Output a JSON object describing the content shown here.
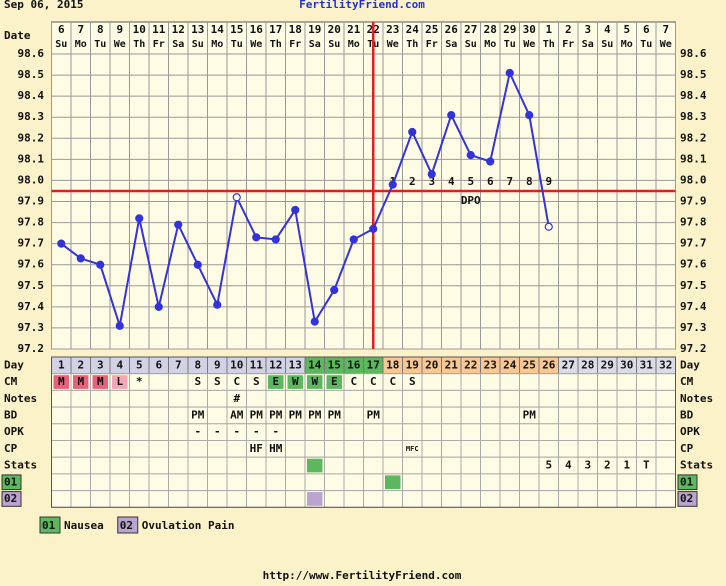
{
  "chart_data": {
    "type": "line",
    "title": "FertilityFriend.com",
    "subtitle": "Sep 06, 2015",
    "footer": "http://www.FertilityFriend.com",
    "date_label": "Date",
    "day_label": "Day",
    "dates": [
      6,
      7,
      8,
      9,
      10,
      11,
      12,
      13,
      14,
      15,
      16,
      17,
      18,
      19,
      20,
      21,
      22,
      23,
      24,
      25,
      26,
      27,
      28,
      29,
      30,
      1,
      2,
      3,
      4,
      5,
      6,
      7
    ],
    "weekdays": [
      "Su",
      "Mo",
      "Tu",
      "We",
      "Th",
      "Fr",
      "Sa",
      "Su",
      "Mo",
      "Tu",
      "We",
      "Th",
      "Fr",
      "Sa",
      "Su",
      "Mo",
      "Tu",
      "We",
      "Th",
      "Fr",
      "Sa",
      "Su",
      "Mo",
      "Tu",
      "We",
      "Th",
      "Fr",
      "Sa",
      "Su",
      "Mo",
      "Tu",
      "We"
    ],
    "categories": [
      1,
      2,
      3,
      4,
      5,
      6,
      7,
      8,
      9,
      10,
      11,
      12,
      13,
      14,
      15,
      16,
      17,
      18,
      19,
      20,
      21,
      22,
      23,
      24,
      25,
      26,
      27,
      28,
      29,
      30,
      31,
      32
    ],
    "day_colors": [
      "#d2d2e6",
      "#d2d2e6",
      "#d2d2e6",
      "#d2d2e6",
      "#d2d2e6",
      "#d2d2e6",
      "#d2d2e6",
      "#d2d2e6",
      "#d2d2e6",
      "#d2d2e6",
      "#d2d2e6",
      "#d2d2e6",
      "#d2d2e6",
      "#5cb85c",
      "#5cb85c",
      "#5cb85c",
      "#5cb85c",
      "#f7c893",
      "#f7c893",
      "#f7c893",
      "#f7c893",
      "#f7c893",
      "#f7c893",
      "#f7c893",
      "#f7c893",
      "#f7c893",
      "#dcdce6",
      "#dcdce6",
      "#dcdce6",
      "#dcdce6",
      "#dcdce6",
      "#dcdce6"
    ],
    "series": [
      {
        "color": "#3333dd",
        "hollow_days": [
          10,
          26
        ],
        "values": [
          97.7,
          97.63,
          97.6,
          97.31,
          97.82,
          97.4,
          97.79,
          97.6,
          97.41,
          97.92,
          97.73,
          97.72,
          97.86,
          97.33,
          97.48,
          97.72,
          97.77,
          97.98,
          98.23,
          98.03,
          98.31,
          98.12,
          98.09,
          98.51,
          98.31,
          97.78,
          null,
          null,
          null,
          null,
          null,
          null
        ]
      }
    ],
    "ylim": [
      97.2,
      98.6
    ],
    "yticks": [
      97.2,
      97.3,
      97.4,
      97.5,
      97.6,
      97.7,
      97.8,
      97.9,
      {
        "value": 98.0,
        "label": "98.0"
      },
      98.1,
      98.2,
      98.3,
      98.4,
      98.5,
      98.6
    ],
    "grid": true,
    "coverline": {
      "value": 97.95,
      "color": "#e02020"
    },
    "ovulation_day": 17,
    "dpo_labels": [
      1,
      2,
      3,
      4,
      5,
      6,
      7,
      8,
      9
    ],
    "dpo_text": "DPO",
    "rows": [
      {
        "label": "CM",
        "cells": [
          "M",
          "M",
          "M",
          "L",
          "*",
          null,
          null,
          "S",
          "S",
          "C",
          "S",
          "E",
          "W",
          "W",
          "E",
          "C",
          "C",
          "C",
          "S",
          null,
          null,
          null,
          null,
          null,
          null,
          null,
          null,
          null,
          null,
          null,
          null,
          null
        ],
        "colors": [
          "#e8607a",
          "#e8607a",
          "#e8607a",
          "#f4a6b6",
          null,
          null,
          null,
          null,
          null,
          null,
          null,
          "#5cb85c",
          "#5cb85c",
          "#5cb85c",
          "#5cb85c",
          null,
          null,
          null,
          null,
          null,
          null,
          null,
          null,
          null,
          null,
          null,
          null,
          null,
          null,
          null,
          null,
          null
        ]
      },
      {
        "label": "Notes",
        "cells": [
          null,
          null,
          null,
          null,
          null,
          null,
          null,
          null,
          null,
          "#",
          null,
          null,
          null,
          null,
          null,
          null,
          null,
          null,
          null,
          null,
          null,
          null,
          null,
          null,
          null,
          null,
          null,
          null,
          null,
          null,
          null,
          null
        ]
      },
      {
        "label": "BD",
        "cells": [
          null,
          null,
          null,
          null,
          null,
          null,
          null,
          "PM",
          null,
          "AM",
          "PM",
          "PM",
          "PM",
          "PM",
          "PM",
          null,
          "PM",
          null,
          null,
          null,
          null,
          null,
          null,
          null,
          "PM",
          null,
          null,
          null,
          null,
          null,
          null,
          null
        ]
      },
      {
        "label": "OPK",
        "cells": [
          null,
          null,
          null,
          null,
          null,
          null,
          null,
          "-",
          "-",
          "-",
          "-",
          "-",
          null,
          null,
          null,
          null,
          null,
          null,
          null,
          null,
          null,
          null,
          null,
          null,
          null,
          null,
          null,
          null,
          null,
          null,
          null,
          null
        ]
      },
      {
        "label": "CP",
        "cells": [
          null,
          null,
          null,
          null,
          null,
          null,
          null,
          null,
          null,
          null,
          "HF",
          "HM",
          null,
          null,
          null,
          null,
          null,
          null,
          "MFC",
          null,
          null,
          null,
          null,
          null,
          null,
          null,
          null,
          null,
          null,
          null,
          null,
          null
        ]
      },
      {
        "label": "Stats",
        "cells": [
          null,
          null,
          null,
          null,
          null,
          null,
          null,
          null,
          null,
          null,
          null,
          null,
          null,
          null,
          null,
          null,
          null,
          null,
          null,
          null,
          null,
          null,
          null,
          null,
          null,
          "5",
          "4",
          "3",
          "2",
          "1",
          "T",
          null
        ],
        "colors": [
          null,
          null,
          null,
          null,
          null,
          null,
          null,
          null,
          null,
          null,
          null,
          null,
          null,
          "#5cb85c",
          null,
          null,
          null,
          null,
          null,
          null,
          null,
          null,
          null,
          null,
          null,
          null,
          null,
          null,
          null,
          null,
          null,
          null
        ]
      },
      {
        "label": "01",
        "label_color": "#5cb85c",
        "colors": [
          null,
          null,
          null,
          null,
          null,
          null,
          null,
          null,
          null,
          null,
          null,
          null,
          null,
          null,
          null,
          null,
          null,
          "#5cb85c",
          null,
          null,
          null,
          null,
          null,
          null,
          null,
          null,
          null,
          null,
          null,
          null,
          null,
          null
        ]
      },
      {
        "label": "02",
        "label_color": "#b9a3cf",
        "colors": [
          null,
          null,
          null,
          null,
          null,
          null,
          null,
          null,
          null,
          null,
          null,
          null,
          null,
          "#b9a3cf",
          null,
          null,
          null,
          null,
          null,
          null,
          null,
          null,
          null,
          null,
          null,
          null,
          null,
          null,
          null,
          null,
          null,
          null
        ]
      }
    ],
    "legend": [
      {
        "code": "01",
        "color": "#5cb85c",
        "text": "Nausea"
      },
      {
        "code": "02",
        "color": "#b9a3cf",
        "text": "Ovulation Pain"
      }
    ]
  }
}
